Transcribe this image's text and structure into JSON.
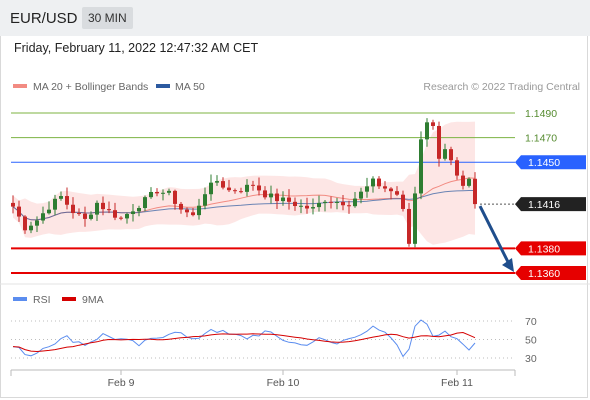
{
  "header": {
    "symbol": "EUR/USD",
    "timeframe": "30 MIN"
  },
  "datetime": "Friday, February 11, 2022 12:47:32 AM CET",
  "legend": {
    "bollinger": {
      "label": "MA 20 + Bollinger Bands",
      "color": "#f28b82"
    },
    "ma50": {
      "label": "MA 50",
      "color": "#2c5aa0"
    }
  },
  "watermark": "Research © 2022 Trading Central",
  "colors": {
    "up": "#2e7d32",
    "down": "#c62828",
    "support": "#e60000",
    "resistance": "#2962ff",
    "target": "#7cb342",
    "arrow": "#1f4e8c",
    "rsi": "#5b8def",
    "rsi_ma": "#d50000",
    "band": "#fde2e0"
  },
  "chart_data": [
    {
      "type": "candlestick",
      "ylim": [
        1.1345,
        1.1505
      ],
      "x_labels": [
        {
          "label": "Feb 9",
          "index": 18
        },
        {
          "label": "Feb 10",
          "index": 45
        },
        {
          "label": "Feb 11",
          "index": 74
        }
      ],
      "levels": [
        {
          "value": 1.149,
          "label": "1.1490",
          "kind": "target",
          "style": "label"
        },
        {
          "value": 1.147,
          "label": "1.1470",
          "kind": "target",
          "style": "label"
        },
        {
          "value": 1.145,
          "label": "1.1450",
          "kind": "resistance",
          "style": "tag"
        },
        {
          "value": 1.1416,
          "label": "1.1416",
          "kind": "last",
          "style": "tag"
        },
        {
          "value": 1.138,
          "label": "1.1380",
          "kind": "support",
          "style": "tag"
        },
        {
          "value": 1.136,
          "label": "1.1360",
          "kind": "support",
          "style": "tag"
        }
      ],
      "anchors": [
        [
          0,
          1.1414
        ],
        [
          2,
          1.1397
        ],
        [
          4,
          1.1403
        ],
        [
          6,
          1.1414
        ],
        [
          8,
          1.1422
        ],
        [
          10,
          1.141
        ],
        [
          12,
          1.1403
        ],
        [
          14,
          1.1417
        ],
        [
          16,
          1.141
        ],
        [
          18,
          1.1404
        ],
        [
          20,
          1.1412
        ],
        [
          22,
          1.1419
        ],
        [
          24,
          1.1427
        ],
        [
          26,
          1.1424
        ],
        [
          28,
          1.1412
        ],
        [
          30,
          1.1406
        ],
        [
          32,
          1.1426
        ],
        [
          34,
          1.1435
        ],
        [
          36,
          1.1427
        ],
        [
          38,
          1.1428
        ],
        [
          40,
          1.1432
        ],
        [
          42,
          1.1424
        ],
        [
          44,
          1.142
        ],
        [
          46,
          1.1418
        ],
        [
          48,
          1.1414
        ],
        [
          50,
          1.1412
        ],
        [
          52,
          1.142
        ],
        [
          54,
          1.1418
        ],
        [
          56,
          1.1417
        ],
        [
          58,
          1.1425
        ],
        [
          60,
          1.1434
        ],
        [
          62,
          1.1429
        ],
        [
          64,
          1.1424
        ],
        [
          65,
          1.141
        ],
        [
          66,
          1.1384
        ],
        [
          67,
          1.1425
        ],
        [
          68,
          1.147
        ],
        [
          69,
          1.1484
        ],
        [
          70,
          1.1478
        ],
        [
          71,
          1.1455
        ],
        [
          72,
          1.1462
        ],
        [
          73,
          1.145
        ],
        [
          74,
          1.1437
        ],
        [
          75,
          1.1428
        ],
        [
          76,
          1.1434
        ],
        [
          77,
          1.1416
        ]
      ],
      "projection": {
        "from": 1.1416,
        "to": 1.136
      }
    },
    {
      "type": "line",
      "name": "RSI",
      "legend": [
        {
          "label": "RSI",
          "color": "#5b8def"
        },
        {
          "label": "9MA",
          "color": "#d50000"
        }
      ],
      "ylim": [
        20,
        80
      ],
      "ticks": [
        "70",
        "50",
        "30"
      ],
      "tick_values": [
        70,
        50,
        30
      ],
      "anchors": [
        [
          0,
          42
        ],
        [
          3,
          33
        ],
        [
          6,
          45
        ],
        [
          9,
          52
        ],
        [
          12,
          45
        ],
        [
          15,
          55
        ],
        [
          18,
          50
        ],
        [
          21,
          44
        ],
        [
          24,
          52
        ],
        [
          27,
          60
        ],
        [
          30,
          48
        ],
        [
          33,
          62
        ],
        [
          36,
          55
        ],
        [
          39,
          52
        ],
        [
          42,
          58
        ],
        [
          45,
          50
        ],
        [
          48,
          44
        ],
        [
          51,
          50
        ],
        [
          54,
          45
        ],
        [
          57,
          55
        ],
        [
          60,
          62
        ],
        [
          63,
          52
        ],
        [
          65,
          32
        ],
        [
          66,
          42
        ],
        [
          67,
          62
        ],
        [
          68,
          72
        ],
        [
          69,
          68
        ],
        [
          70,
          55
        ],
        [
          72,
          60
        ],
        [
          74,
          48
        ],
        [
          76,
          38
        ],
        [
          77,
          46
        ]
      ]
    }
  ]
}
